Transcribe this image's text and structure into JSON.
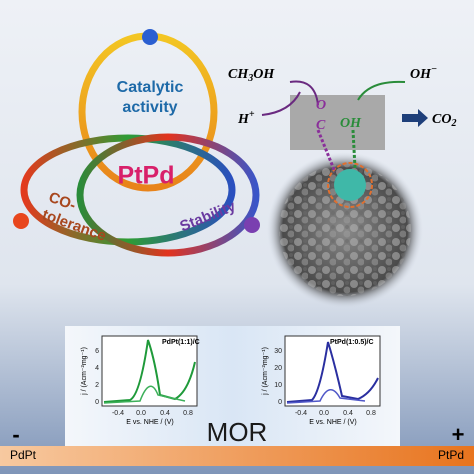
{
  "properties": {
    "line1": "Catalytic",
    "line2": "activity",
    "center": "PtPd",
    "co_line1": "CO-",
    "co_line2": "tolerance",
    "stability": "Stability"
  },
  "reaction": {
    "reactant": "CH",
    "reactant_sub": "3",
    "reactant_end": "OH",
    "hydroxide": "OH",
    "hydroxide_sup": "−",
    "proton": "H",
    "proton_sup": "+",
    "o": "O",
    "c": "C",
    "oh": "OH",
    "product": "CO",
    "product_sub": "2"
  },
  "plots": [
    {
      "title": "PdPt(1:1)/C",
      "ylabel": "j / (Acm⁻²mg⁻¹)",
      "xlabel": "E vs. NHE / (V)",
      "xticks": [
        "-0.4",
        "0.0",
        "0.4",
        "0.8"
      ],
      "yticks": [
        "0",
        "2",
        "4",
        "6"
      ]
    },
    {
      "title": "PtPd(1:0.5)/C",
      "ylabel": "j / (Acm⁻²mg⁻¹)",
      "xlabel": "E vs. NHE / (V)",
      "xticks": [
        "-0.4",
        "0.0",
        "0.4",
        "0.8"
      ],
      "yticks": [
        "0",
        "10",
        "20",
        "30"
      ]
    }
  ],
  "scale": {
    "label": "MOR",
    "minus": "-",
    "plus": "+",
    "left": "PdPt",
    "right": "PtPd"
  }
}
